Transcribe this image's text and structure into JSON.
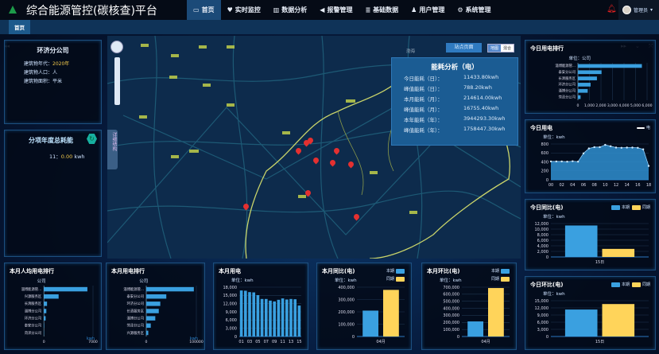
{
  "header": {
    "title": "综合能源管控(碳核查)平台",
    "nav": [
      {
        "label": "首页",
        "icon": "monitor-icon"
      },
      {
        "label": "实时监控",
        "icon": "heart-pulse-icon"
      },
      {
        "label": "数据分析",
        "icon": "bar-chart-icon"
      },
      {
        "label": "报警管理",
        "icon": "megaphone-icon"
      },
      {
        "label": "基础数据",
        "icon": "database-icon"
      },
      {
        "label": "用户管理",
        "icon": "user-icon"
      },
      {
        "label": "系统管理",
        "icon": "gears-icon"
      }
    ],
    "user": "管理员",
    "active_color": "#1b4a78"
  },
  "tabs": [
    {
      "label": "首页"
    }
  ],
  "company": {
    "name": "环济分公司",
    "year_label": "建筑物年代：",
    "year": "2020年",
    "pop_label": "建筑物人口：",
    "pop": "人",
    "area_label": "建筑物面积：",
    "area": "平米"
  },
  "annual": {
    "title": "分项年度总耗能",
    "row_key": "11：",
    "row_value": "0.00",
    "row_unit": "kwh"
  },
  "map": {
    "sea_label": "渤海",
    "side_tab": "详细结构",
    "site_button": "站点页面",
    "type_options": [
      "地图",
      "混合"
    ],
    "selected_type": "地图"
  },
  "popup": {
    "title": "能耗分析（电）",
    "rows": [
      {
        "label": "今日能耗（日）：",
        "value": "11433.80kwh"
      },
      {
        "label": "峰值能耗（日）：",
        "value": "788.20kwh"
      },
      {
        "label": "本月能耗（月）：",
        "value": "214614.00kwh"
      },
      {
        "label": "峰值能耗（月）：",
        "value": "16755.40kwh"
      },
      {
        "label": "本年能耗（年）：",
        "value": "3944293.30kwh"
      },
      {
        "label": "峰值能耗（年）：",
        "value": "1758447.30kwh"
      }
    ]
  },
  "colors": {
    "bar": "#3aa0e0",
    "current": "#3aa0e0",
    "previous": "#ffd45a",
    "area": "#2f8fd0"
  },
  "chart_data": [
    {
      "id": "today_rank",
      "type": "bar",
      "orientation": "horizontal",
      "title": "今日用电排行",
      "unit": "单位：公司",
      "categories": [
        "淄博能源管...",
        "泰安分公司",
        "长清服务区",
        "环济分公司",
        "淄博分公司",
        "菏泽分公司"
      ],
      "values": [
        5550,
        2050,
        1650,
        1100,
        850,
        230
      ],
      "xlim": [
        0,
        6000
      ],
      "ticks": [
        "0",
        "1,000",
        "2,000",
        "3,000",
        "4,000",
        "5,000",
        "6,000"
      ]
    },
    {
      "id": "today_power",
      "type": "area",
      "title": "今日用电",
      "unit": "单位：kwh",
      "legend": "电",
      "x": [
        "00",
        "01",
        "02",
        "03",
        "04",
        "05",
        "06",
        "07",
        "08",
        "09",
        "10",
        "11",
        "12",
        "13",
        "14",
        "15",
        "16",
        "17",
        "18"
      ],
      "values": [
        410,
        410,
        410,
        405,
        415,
        405,
        590,
        700,
        730,
        730,
        780,
        750,
        720,
        715,
        720,
        720,
        715,
        680,
        310
      ],
      "ylim": [
        0,
        800
      ],
      "yticks": [
        "0",
        "200",
        "400",
        "600",
        "800"
      ],
      "xticks": [
        "00",
        "02",
        "04",
        "06",
        "08",
        "10",
        "12",
        "14",
        "16",
        "18"
      ]
    },
    {
      "id": "today_yoy",
      "type": "bar",
      "title": "今日同比(电)",
      "unit": "单位：kwh",
      "categories": [
        "15日"
      ],
      "series": [
        {
          "name": "本期",
          "values": [
            11300
          ]
        },
        {
          "name": "同期",
          "values": [
            2900
          ]
        }
      ],
      "ylim": [
        0,
        12000
      ],
      "yticks": [
        "0",
        "2,000",
        "4,000",
        "6,000",
        "8,000",
        "10,000",
        "12,000"
      ]
    },
    {
      "id": "today_mom",
      "type": "bar",
      "title": "今日环比(电)",
      "unit": "单位：kwh",
      "categories": [
        "15日"
      ],
      "series": [
        {
          "name": "本期",
          "values": [
            11300
          ]
        },
        {
          "name": "同期",
          "values": [
            13600
          ]
        }
      ],
      "ylim": [
        0,
        15000
      ],
      "yticks": [
        "0",
        "3,000",
        "6,000",
        "9,000",
        "12,000",
        "15,000"
      ]
    },
    {
      "id": "month_capita",
      "type": "bar",
      "orientation": "horizontal",
      "title": "本月人均用电排行",
      "unit": "公司",
      "xunit": "kwh",
      "categories": [
        "淄博能源管...",
        "兴源服务区",
        "长清服务区",
        "淄博分公司",
        "环济分公司",
        "泰安分公司",
        "菏泽分公司"
      ],
      "values": [
        6200,
        2100,
        450,
        350,
        250,
        50,
        30
      ],
      "xlim": [
        0,
        7000
      ],
      "ticks": [
        "0",
        "7000"
      ]
    },
    {
      "id": "month_rank",
      "type": "bar",
      "orientation": "horizontal",
      "title": "本月用电排行",
      "unit": "公司",
      "xunit": "kwh",
      "categories": [
        "淄博能源管...",
        "泰安分公司",
        "环济分公司",
        "长清服务区",
        "淄博分公司",
        "菏泽分公司",
        "兴源服务区"
      ],
      "values": [
        95000,
        40000,
        28000,
        25000,
        18000,
        9000,
        4000
      ],
      "xlim": [
        0,
        100000
      ],
      "ticks": [
        "0",
        "100000"
      ]
    },
    {
      "id": "month_power",
      "type": "bar",
      "title": "本月用电",
      "unit": "单位：kwh",
      "categories": [
        "01",
        "02",
        "03",
        "04",
        "05",
        "06",
        "07",
        "08",
        "09",
        "10",
        "11",
        "12",
        "13",
        "14",
        "15"
      ],
      "values": [
        16800,
        16700,
        16200,
        16100,
        15100,
        13700,
        13700,
        13100,
        12800,
        13400,
        13900,
        13500,
        13700,
        13600,
        11300
      ],
      "ylim": [
        0,
        18000
      ],
      "yticks": [
        "0",
        "3,000",
        "6,000",
        "9,000",
        "12,000",
        "15,000",
        "18,000"
      ],
      "xticks": [
        "01",
        "03",
        "05",
        "07",
        "09",
        "11",
        "13",
        "15"
      ]
    },
    {
      "id": "month_yoy",
      "type": "bar",
      "title": "本月同比(电)",
      "unit": "单位：kwh",
      "categories": [
        "04月"
      ],
      "series": [
        {
          "name": "本期",
          "values": [
            210000
          ]
        },
        {
          "name": "同期",
          "values": [
            378000
          ]
        }
      ],
      "ylim": [
        0,
        400000
      ],
      "yticks": [
        "0",
        "100,000",
        "200,000",
        "300,000",
        "400,000"
      ]
    },
    {
      "id": "month_mom",
      "type": "bar",
      "title": "本月环比(电)",
      "unit": "单位：kwh",
      "categories": [
        "04月"
      ],
      "series": [
        {
          "name": "本期",
          "values": [
            214000
          ]
        },
        {
          "name": "同期",
          "values": [
            688000
          ]
        }
      ],
      "ylim": [
        0,
        700000
      ],
      "yticks": [
        "0",
        "100,000",
        "200,000",
        "300,000",
        "400,000",
        "500,000",
        "600,000",
        "700,000"
      ]
    }
  ]
}
